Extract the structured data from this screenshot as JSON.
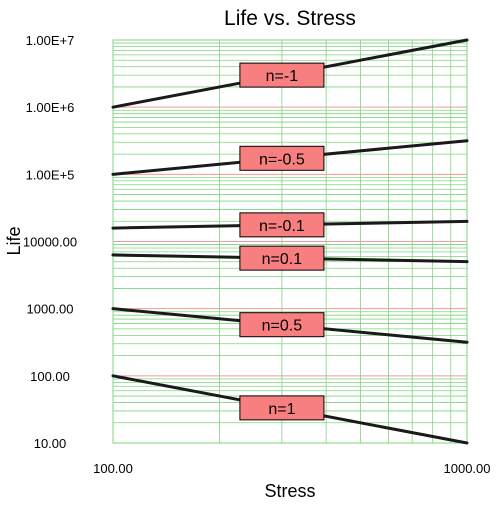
{
  "chart_data": {
    "type": "line",
    "title": "Life vs. Stress",
    "xlabel": "Stress",
    "ylabel": "Life",
    "x_scale": "log",
    "y_scale": "log",
    "xlim": [
      100,
      1000
    ],
    "ylim": [
      10,
      10000000
    ],
    "grid": true,
    "x_tick_labels": [
      {
        "value": 100,
        "label": "100.00"
      },
      {
        "value": 1000,
        "label": "1000.00"
      }
    ],
    "y_tick_labels": [
      {
        "value": 10,
        "label": "10.00"
      },
      {
        "value": 100,
        "label": "100.00"
      },
      {
        "value": 1000,
        "label": "1000.00"
      },
      {
        "value": 10000,
        "label": "10000.00"
      },
      {
        "value": 100000,
        "label": "1.00E+5"
      },
      {
        "value": 1000000,
        "label": "1.00E+6"
      },
      {
        "value": 10000000,
        "label": "1.00E+7"
      }
    ],
    "series": [
      {
        "name": "n=-1",
        "x": [
          100,
          1000
        ],
        "y": [
          1000000,
          10000000
        ]
      },
      {
        "name": "n=-0.5",
        "x": [
          100,
          1000
        ],
        "y": [
          100000,
          316228
        ]
      },
      {
        "name": "n=-0.1",
        "x": [
          100,
          1000
        ],
        "y": [
          15849,
          19953
        ]
      },
      {
        "name": "n=0.1",
        "x": [
          100,
          1000
        ],
        "y": [
          6310,
          5012
        ]
      },
      {
        "name": "n=0.5",
        "x": [
          100,
          1000
        ],
        "y": [
          1000,
          316
        ]
      },
      {
        "name": "n=1",
        "x": [
          100,
          1000
        ],
        "y": [
          100,
          10
        ]
      }
    ],
    "label_positions_x": [
      300,
      300,
      300,
      300,
      300,
      300
    ],
    "colors": {
      "minor_grid": "#7fd47f",
      "major_grid": "#f29a9a",
      "label_fill": "#f87f7f",
      "line": "#1a1a1a"
    }
  }
}
